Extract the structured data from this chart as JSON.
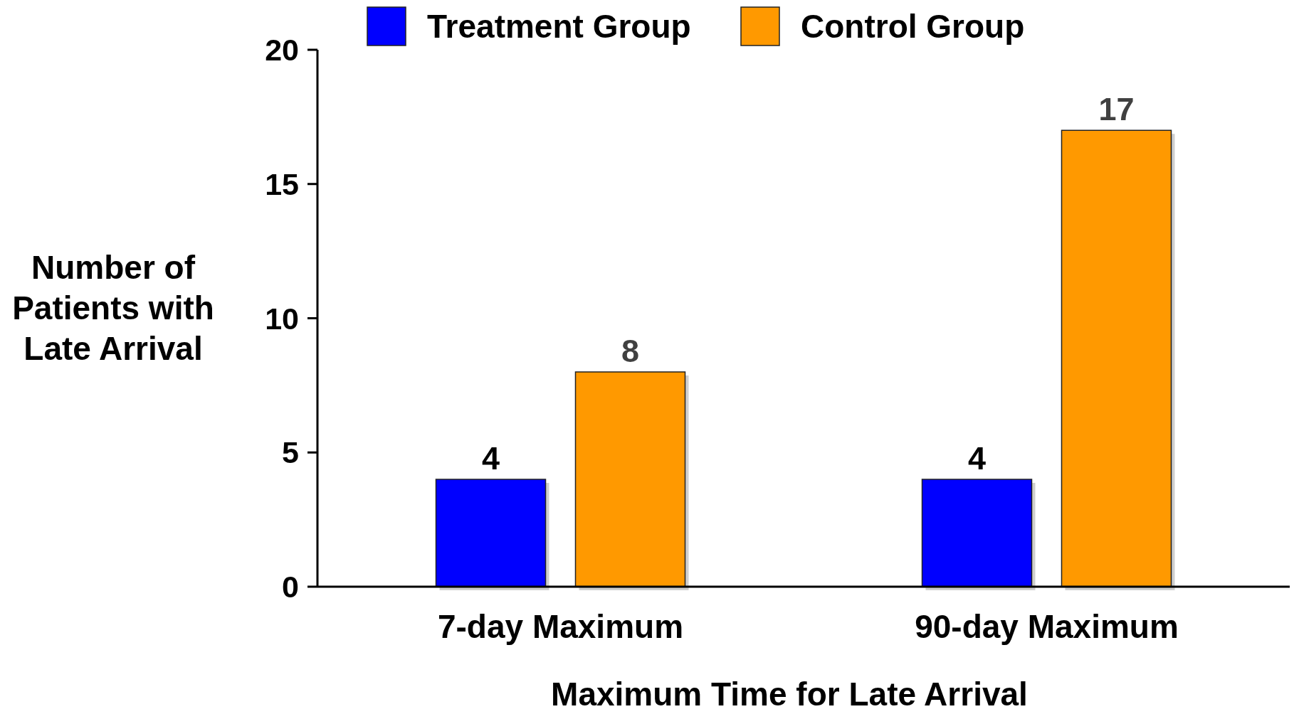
{
  "chart_data": {
    "type": "bar",
    "xlabel": "Maximum Time for Late Arrival",
    "ylabel": "Number of\nPatients with\nLate Arrival",
    "categories": [
      "7-day Maximum",
      "90-day Maximum"
    ],
    "series": [
      {
        "name": "Treatment Group",
        "color": "#0000ff",
        "values": [
          4,
          4
        ]
      },
      {
        "name": "Control Group",
        "color": "#ff9900",
        "values": [
          8,
          17
        ]
      }
    ],
    "ylim": [
      0,
      20
    ],
    "yticks": [
      0,
      5,
      10,
      15,
      20
    ],
    "data_labels": true,
    "legend": "top",
    "grid": false
  }
}
